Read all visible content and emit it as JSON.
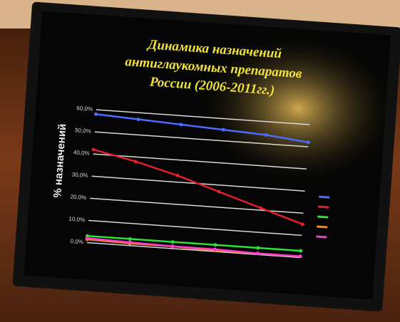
{
  "chart_data": {
    "type": "line",
    "title_lines": [
      "Динамика назначений",
      "антиглаукомных препаратов",
      "России (2006-2011гг.)"
    ],
    "y_label": "% назначений",
    "categories": [
      null,
      null,
      null,
      null,
      null,
      null
    ],
    "series": [
      {
        "color": "#4a6cff",
        "values": [
          58,
          57,
          56,
          55,
          54,
          52
        ]
      },
      {
        "color": "#e0202a",
        "values": [
          42,
          38,
          33,
          27,
          21,
          15
        ]
      },
      {
        "color": "#2ee03a",
        "values": [
          3,
          3,
          3,
          3,
          3,
          3
        ]
      },
      {
        "color": "#ff8a1a",
        "values": [
          1.5,
          1,
          1,
          0.5,
          0.5,
          0.5
        ]
      },
      {
        "color": "#ff3ad0",
        "values": [
          2,
          1.5,
          1,
          1,
          0.5,
          0.5
        ]
      }
    ],
    "ylim": [
      0,
      60
    ],
    "yticks": [
      {
        "value": 0,
        "label": "0,0%"
      },
      {
        "value": 10,
        "label": "10,0%"
      },
      {
        "value": 20,
        "label": "20,0%"
      },
      {
        "value": 30,
        "label": "30,0%"
      },
      {
        "value": 40,
        "label": "40,0%"
      },
      {
        "value": 50,
        "label": "50,0%"
      },
      {
        "value": 60,
        "label": "60,0%"
      }
    ],
    "grid": true
  }
}
